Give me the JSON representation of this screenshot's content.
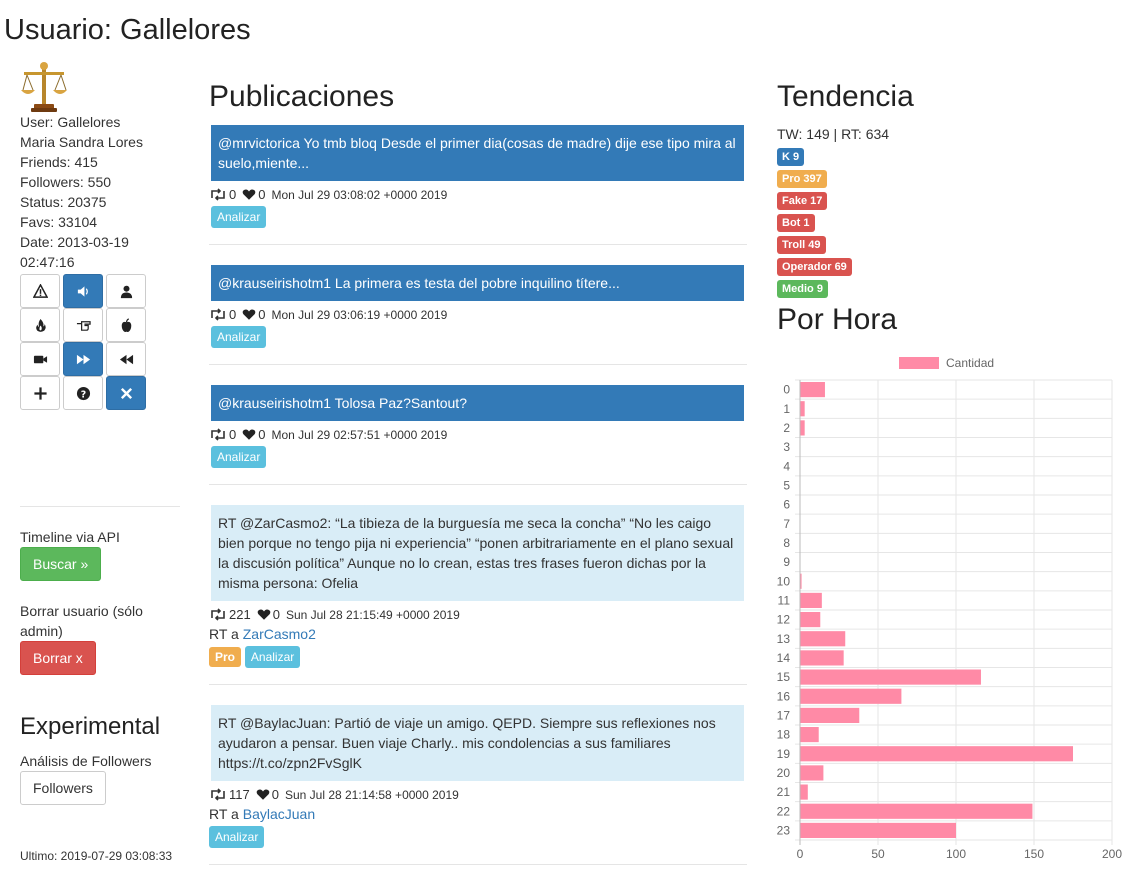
{
  "page": {
    "title": "Usuario: Gallelores"
  },
  "profile": {
    "lines": [
      "User: Gallelores",
      "Maria Sandra Lores",
      "Friends: 415",
      "Followers: 550",
      "Status: 20375",
      "Favs: 33104",
      "Date: 2013-03-19",
      "02:47:16"
    ],
    "grid_buttons": [
      {
        "icon": "warning-icon",
        "primary": false
      },
      {
        "icon": "volume-icon",
        "primary": true
      },
      {
        "icon": "user-icon",
        "primary": false
      },
      {
        "icon": "fire-icon",
        "primary": false
      },
      {
        "icon": "hand-pointing-icon",
        "primary": false
      },
      {
        "icon": "apple-icon",
        "primary": false
      },
      {
        "icon": "video-camera-icon",
        "primary": false
      },
      {
        "icon": "fast-forward-icon",
        "primary": true
      },
      {
        "icon": "rewind-icon",
        "primary": false
      },
      {
        "icon": "plus-icon",
        "primary": false
      },
      {
        "icon": "question-icon",
        "primary": false
      },
      {
        "icon": "close-icon",
        "primary": true
      }
    ]
  },
  "sidebar": {
    "timeline_label": "Timeline via API",
    "search_button": "Buscar »",
    "delete_label": "Borrar usuario (sólo admin)",
    "delete_button": "Borrar x",
    "experimental_title": "Experimental",
    "followers_analysis_label": "Análisis de Followers",
    "followers_button": "Followers",
    "last_update": "Ultimo: 2019-07-29 03:08:33"
  },
  "publications": {
    "title": "Publicaciones",
    "analyze_label": "Analizar",
    "rt_prefix": "RT a",
    "posts": [
      {
        "text": "@mrvictorica Yo tmb bloq Desde el primer dia(cosas de madre) dije ese tipo mira al suelo,miente...",
        "retweets": "0",
        "likes": "0",
        "timestamp": "Mon Jul 29 03:08:02 +0000 2019"
      },
      {
        "text": "@krauseirishotm1 La primera es testa del pobre inquilino títere...",
        "retweets": "0",
        "likes": "0",
        "timestamp": "Mon Jul 29 03:06:19 +0000 2019"
      },
      {
        "text": "@krauseirishotm1 Tolosa Paz?Santout?",
        "retweets": "0",
        "likes": "0",
        "timestamp": "Mon Jul 29 02:57:51 +0000 2019"
      },
      {
        "text": "RT @ZarCasmo2: “La tibieza de la burguesía me seca la concha” “No les caigo bien porque no tengo pija ni experiencia” “ponen arbitrariamente en el plano sexual la discusión política” Aunque no lo crean, estas tres frases fueron dichas por la misma persona: Ofelia",
        "retweets": "221",
        "likes": "0",
        "timestamp": "Sun Jul 28 21:15:49 +0000 2019",
        "rt_user": "ZarCasmo2",
        "badge": "Pro"
      },
      {
        "text": "RT @BaylacJuan: Partió de viaje un amigo. QEPD. Siempre sus reflexiones nos ayudaron a pensar. Buen viaje Charly.. mis condolencias a sus familiares https://t.co/zpn2FvSglK",
        "retweets": "117",
        "likes": "0",
        "timestamp": "Sun Jul 28 21:14:58 +0000 2019",
        "rt_user": "BaylacJuan"
      }
    ]
  },
  "trend": {
    "title": "Tendencia",
    "summary": "TW: 149 | RT: 634",
    "badges": [
      {
        "text": "K 9",
        "color": "#337ab7"
      },
      {
        "text": "Pro 397",
        "color": "#f0ad4e"
      },
      {
        "text": "Fake 17",
        "color": "#d9534f"
      },
      {
        "text": "Bot 1",
        "color": "#d9534f"
      },
      {
        "text": "Troll 49",
        "color": "#d9534f"
      },
      {
        "text": "Operador 69",
        "color": "#d9534f"
      },
      {
        "text": "Medio 9",
        "color": "#5cb85c"
      }
    ]
  },
  "hourly": {
    "title": "Por Hora"
  },
  "chart_data": {
    "type": "bar",
    "orientation": "horizontal",
    "categories": [
      "0",
      "1",
      "2",
      "3",
      "4",
      "5",
      "6",
      "7",
      "8",
      "9",
      "10",
      "11",
      "12",
      "13",
      "14",
      "15",
      "16",
      "17",
      "18",
      "19",
      "20",
      "21",
      "22",
      "23"
    ],
    "series": [
      {
        "name": "Cantidad",
        "color": "#ff8aa6",
        "values": [
          16,
          3,
          3,
          0,
          0,
          0,
          0,
          0,
          0,
          0,
          1,
          14,
          13,
          29,
          28,
          116,
          65,
          38,
          12,
          175,
          15,
          5,
          149,
          100
        ]
      }
    ],
    "xlim": [
      0,
      200
    ],
    "xticks": [
      "0",
      "50",
      "100",
      "150",
      "200"
    ],
    "grid": true,
    "legend": "top"
  }
}
